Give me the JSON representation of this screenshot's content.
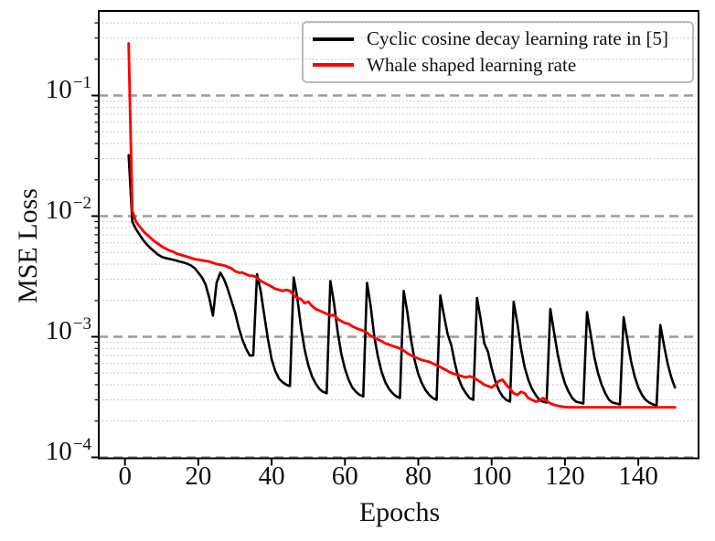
{
  "figure": {
    "background": "#ffffff",
    "xlabel": "Epochs",
    "ylabel": "MSE Loss",
    "xticks": [
      "0",
      "20",
      "40",
      "60",
      "80",
      "100",
      "120",
      "140"
    ],
    "yticks": [
      {
        "base": "10",
        "exp": "−1"
      },
      {
        "base": "10",
        "exp": "−2"
      },
      {
        "base": "10",
        "exp": "−3"
      },
      {
        "base": "10",
        "exp": "−4"
      }
    ]
  },
  "legend": {
    "items": [
      {
        "label": "Cyclic cosine decay learning rate in [5]",
        "color": "#000000"
      },
      {
        "label": "Whale shaped learning rate",
        "color": "#ff0000"
      }
    ]
  },
  "chart_data": {
    "type": "line",
    "title": "",
    "xlabel": "Epochs",
    "ylabel": "MSE Loss",
    "legend_position": "upper right",
    "grid": {
      "major": "dashed gray horizontal at decades",
      "minor": "dotted light-gray horizontal at log minors"
    },
    "x_axis": {
      "ticks": [
        0,
        20,
        40,
        60,
        80,
        100,
        120,
        140
      ],
      "shown_range": [
        0,
        150
      ]
    },
    "y_axis": {
      "scale": "log",
      "tick_values": [
        0.1,
        0.01,
        0.001,
        0.0001
      ],
      "tick_labels": [
        "10^-1",
        "10^-2",
        "10^-3",
        "10^-4"
      ],
      "range": [
        0.0001,
        0.5
      ]
    },
    "x_start": 1,
    "x_step": 1,
    "series": [
      {
        "name": "Cyclic cosine decay learning rate in [5]",
        "color": "#000000",
        "values": [
          0.032,
          0.009,
          0.0078,
          0.007,
          0.0063,
          0.0058,
          0.0054,
          0.0051,
          0.0048,
          0.0046,
          0.0045,
          0.00443,
          0.00436,
          0.00428,
          0.0042,
          0.00412,
          0.00402,
          0.0039,
          0.0037,
          0.0034,
          0.0031,
          0.0027,
          0.0021,
          0.0015,
          0.0028,
          0.0034,
          0.003,
          0.0025,
          0.002,
          0.0016,
          0.0012,
          0.00095,
          0.0008,
          0.0007,
          0.0007,
          0.0033,
          0.0024,
          0.0015,
          0.00095,
          0.00065,
          0.00052,
          0.00045,
          0.00042,
          0.0004,
          0.00039,
          0.0031,
          0.0021,
          0.0012,
          0.00078,
          0.00058,
          0.00047,
          0.00041,
          0.00037,
          0.00035,
          0.00034,
          0.0029,
          0.0019,
          0.0011,
          0.00072,
          0.00054,
          0.00044,
          0.00038,
          0.00035,
          0.00033,
          0.00032,
          0.0028,
          0.0018,
          0.001,
          0.00068,
          0.00051,
          0.00042,
          0.00037,
          0.00034,
          0.00032,
          0.00031,
          0.0024,
          0.0016,
          0.00095,
          0.00064,
          0.00049,
          0.00041,
          0.00036,
          0.00033,
          0.00031,
          0.0003,
          0.0022,
          0.0015,
          0.00105,
          0.00085,
          0.0006,
          0.00045,
          0.00038,
          0.00034,
          0.00031,
          0.0003,
          0.0021,
          0.0014,
          0.00088,
          0.00075,
          0.00055,
          0.00043,
          0.00036,
          0.00032,
          0.0003,
          0.00029,
          0.00195,
          0.0013,
          0.0008,
          0.00056,
          0.00044,
          0.00037,
          0.00033,
          0.0003,
          0.00029,
          0.000285,
          0.0017,
          0.0011,
          0.00072,
          0.00052,
          0.00041,
          0.00035,
          0.00031,
          0.00029,
          0.000285,
          0.00028,
          0.0016,
          0.00105,
          0.00068,
          0.0005,
          0.0004,
          0.00034,
          0.0003,
          0.000285,
          0.00028,
          0.000275,
          0.00145,
          0.00095,
          0.00063,
          0.00047,
          0.00038,
          0.00033,
          0.0003,
          0.000285,
          0.000275,
          0.00027,
          0.00125,
          0.00085,
          0.0006,
          0.00046,
          0.00038
        ]
      },
      {
        "name": "Whale shaped learning rate",
        "color": "#ff0000",
        "values": [
          0.27,
          0.011,
          0.009,
          0.0082,
          0.0075,
          0.007,
          0.0066,
          0.0062,
          0.0059,
          0.0056,
          0.0054,
          0.0052,
          0.0051,
          0.0049,
          0.0048,
          0.0047,
          0.0046,
          0.0045,
          0.0044,
          0.00435,
          0.0043,
          0.00425,
          0.0042,
          0.0041,
          0.004,
          0.00395,
          0.0039,
          0.0038,
          0.0037,
          0.0035,
          0.0034,
          0.0034,
          0.0033,
          0.0032,
          0.0032,
          0.0031,
          0.0029,
          0.0028,
          0.0027,
          0.0026,
          0.0025,
          0.00245,
          0.0024,
          0.00245,
          0.0024,
          0.0022,
          0.0021,
          0.00205,
          0.0019,
          0.00195,
          0.0018,
          0.0017,
          0.00165,
          0.0016,
          0.00155,
          0.0015,
          0.00152,
          0.0014,
          0.00135,
          0.0013,
          0.00128,
          0.00122,
          0.00118,
          0.00115,
          0.00112,
          0.00108,
          0.00102,
          0.00098,
          0.00095,
          0.00092,
          0.00088,
          0.00086,
          0.00084,
          0.00082,
          0.0008,
          0.00077,
          0.00073,
          0.0007,
          0.00068,
          0.00066,
          0.00064,
          0.00063,
          0.00062,
          0.0006,
          0.00058,
          0.00056,
          0.00054,
          0.00052,
          0.0005,
          0.00049,
          0.00048,
          0.00047,
          0.00046,
          0.00047,
          0.00046,
          0.00044,
          0.00042,
          0.0004,
          0.00039,
          0.00038,
          0.0004,
          0.00043,
          0.00044,
          0.0004,
          0.00037,
          0.00034,
          0.00033,
          0.00035,
          0.00034,
          0.00031,
          0.0003,
          0.00029,
          0.000295,
          0.00031,
          0.000295,
          0.00028,
          0.000272,
          0.000268,
          0.000264,
          0.000262,
          0.00026,
          0.00026,
          0.00026,
          0.00026,
          0.00026,
          0.00026,
          0.00026,
          0.00026,
          0.00026,
          0.00026,
          0.00026,
          0.00026,
          0.00026,
          0.00026,
          0.00026,
          0.00026,
          0.00026,
          0.00026,
          0.00026,
          0.00026,
          0.00026,
          0.00026,
          0.00026,
          0.00026,
          0.00026,
          0.00026,
          0.00026,
          0.00026,
          0.00026,
          0.00026
        ]
      }
    ]
  }
}
